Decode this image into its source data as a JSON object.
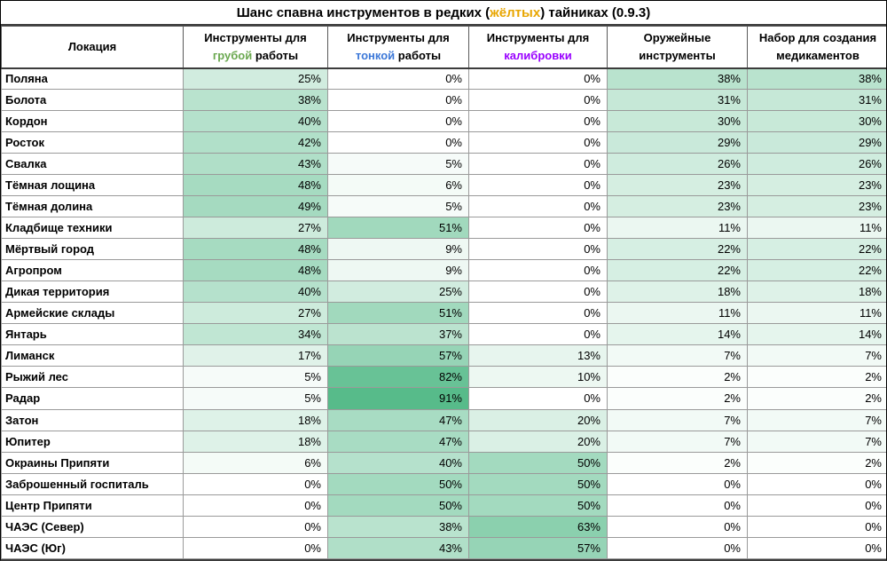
{
  "title": {
    "parts": [
      {
        "text": "Шанс спавна инструментов в редких ("
      },
      {
        "text": "жёлтых",
        "color": "#E8A602"
      },
      {
        "text": ") тайниках (0.9.3)"
      }
    ],
    "full": "Шанс спавна инструментов в редких (жёлтых) тайниках (0.9.3)"
  },
  "header": {
    "location_label": "Локация",
    "cols": [
      {
        "line1": "Инструменты для",
        "line2_parts": [
          {
            "text": "грубой",
            "color": "#6AA84F"
          },
          {
            "text": " работы"
          }
        ]
      },
      {
        "line1": "Инструменты для",
        "line2_parts": [
          {
            "text": "тонкой",
            "color": "#3C78D8"
          },
          {
            "text": " работы"
          }
        ]
      },
      {
        "line1": "Инструменты для",
        "line2_parts": [
          {
            "text": "калибровки",
            "color": "#9900FF"
          }
        ]
      },
      {
        "line1": "Оружейные",
        "line2_parts": [
          {
            "text": "инструменты"
          }
        ]
      },
      {
        "line1": "Набор для создания",
        "line2_parts": [
          {
            "text": "медикаментов"
          }
        ]
      }
    ]
  },
  "colors": {
    "accent_yellow": "#E8A602",
    "accent_green": "#6AA84F",
    "accent_blue": "#3C78D8",
    "accent_purple": "#9900FF",
    "cell_scale_min": "#FFFFFF",
    "cell_scale_max": "#57BB8A"
  },
  "chart_data": {
    "type": "table",
    "title": "Шанс спавна инструментов в редких (жёлтых) тайниках (0.9.3)",
    "value_format": "percent",
    "columns": [
      "Локация",
      "Инструменты для грубой работы",
      "Инструменты для тонкой работы",
      "Инструменты для калибровки",
      "Оружейные инструменты",
      "Набор для создания медикаментов"
    ],
    "rows": [
      [
        "Поляна",
        25,
        0,
        0,
        38,
        38
      ],
      [
        "Болота",
        38,
        0,
        0,
        31,
        31
      ],
      [
        "Кордон",
        40,
        0,
        0,
        30,
        30
      ],
      [
        "Росток",
        42,
        0,
        0,
        29,
        29
      ],
      [
        "Свалка",
        43,
        5,
        0,
        26,
        26
      ],
      [
        "Тёмная лощина",
        48,
        6,
        0,
        23,
        23
      ],
      [
        "Тёмная долина",
        49,
        5,
        0,
        23,
        23
      ],
      [
        "Кладбище техники",
        27,
        51,
        0,
        11,
        11
      ],
      [
        "Мёртвый город",
        48,
        9,
        0,
        22,
        22
      ],
      [
        "Агропром",
        48,
        9,
        0,
        22,
        22
      ],
      [
        "Дикая территория",
        40,
        25,
        0,
        18,
        18
      ],
      [
        "Армейские склады",
        27,
        51,
        0,
        11,
        11
      ],
      [
        "Янтарь",
        34,
        37,
        0,
        14,
        14
      ],
      [
        "Лиманск",
        17,
        57,
        13,
        7,
        7
      ],
      [
        "Рыжий лес",
        5,
        82,
        10,
        2,
        2
      ],
      [
        "Радар",
        5,
        91,
        0,
        2,
        2
      ],
      [
        "Затон",
        18,
        47,
        20,
        7,
        7
      ],
      [
        "Юпитер",
        18,
        47,
        20,
        7,
        7
      ],
      [
        "Окраины Припяти",
        6,
        40,
        50,
        2,
        2
      ],
      [
        "Заброшенный госпиталь",
        0,
        50,
        50,
        0,
        0
      ],
      [
        "Центр Припяти",
        0,
        50,
        50,
        0,
        0
      ],
      [
        "ЧАЭС (Север)",
        0,
        38,
        63,
        0,
        0
      ],
      [
        "ЧАЭС (Юг)",
        0,
        43,
        57,
        0,
        0
      ]
    ],
    "color_scale_note": "cell fill interpolates white to #57BB8A by value, max of range = 91"
  }
}
